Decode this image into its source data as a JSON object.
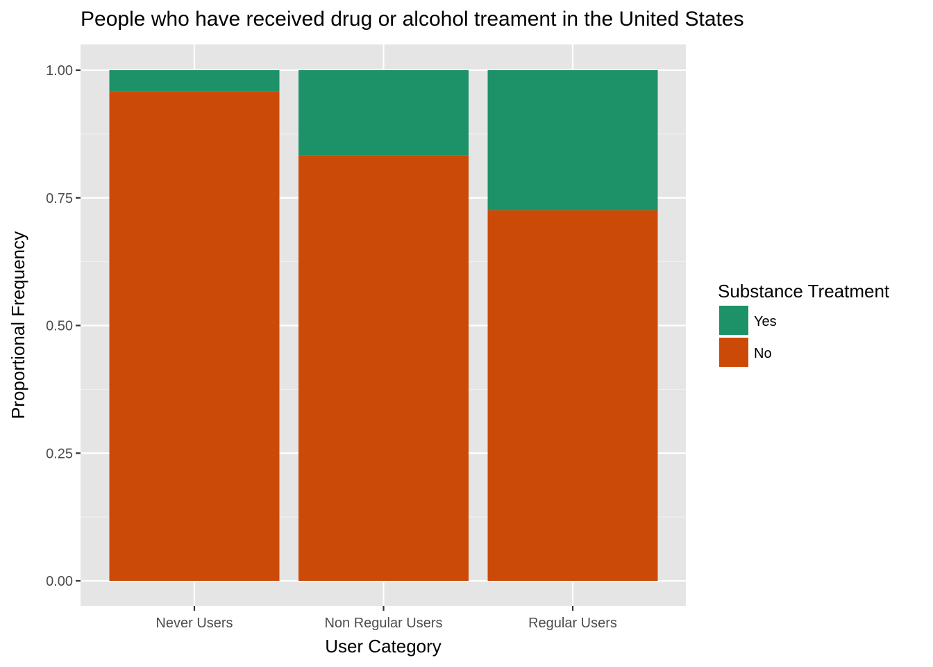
{
  "chart_data": {
    "type": "bar",
    "stacked": true,
    "title": "People who have received drug or alcohol treament in the United States",
    "xlabel": "User Category",
    "ylabel": "Proportional Frequency",
    "categories": [
      "Never Users",
      "Non Regular Users",
      "Regular Users"
    ],
    "series": [
      {
        "name": "No",
        "color": "#CC4A08",
        "values": [
          0.958,
          0.833,
          0.726
        ]
      },
      {
        "name": "Yes",
        "color": "#1D9168",
        "values": [
          0.042,
          0.167,
          0.274
        ]
      }
    ],
    "ylim": [
      0,
      1
    ],
    "yticks": [
      "0.00",
      "0.25",
      "0.50",
      "0.75",
      "1.00"
    ],
    "ytick_values": [
      0,
      0.25,
      0.5,
      0.75,
      1
    ],
    "legend": {
      "title": "Substance Treatment",
      "placement": "right",
      "items": [
        {
          "label": "Yes",
          "color": "#1D9168"
        },
        {
          "label": "No",
          "color": "#CC4A08"
        }
      ]
    },
    "panel_background": "#E5E5E5",
    "grid": true
  }
}
